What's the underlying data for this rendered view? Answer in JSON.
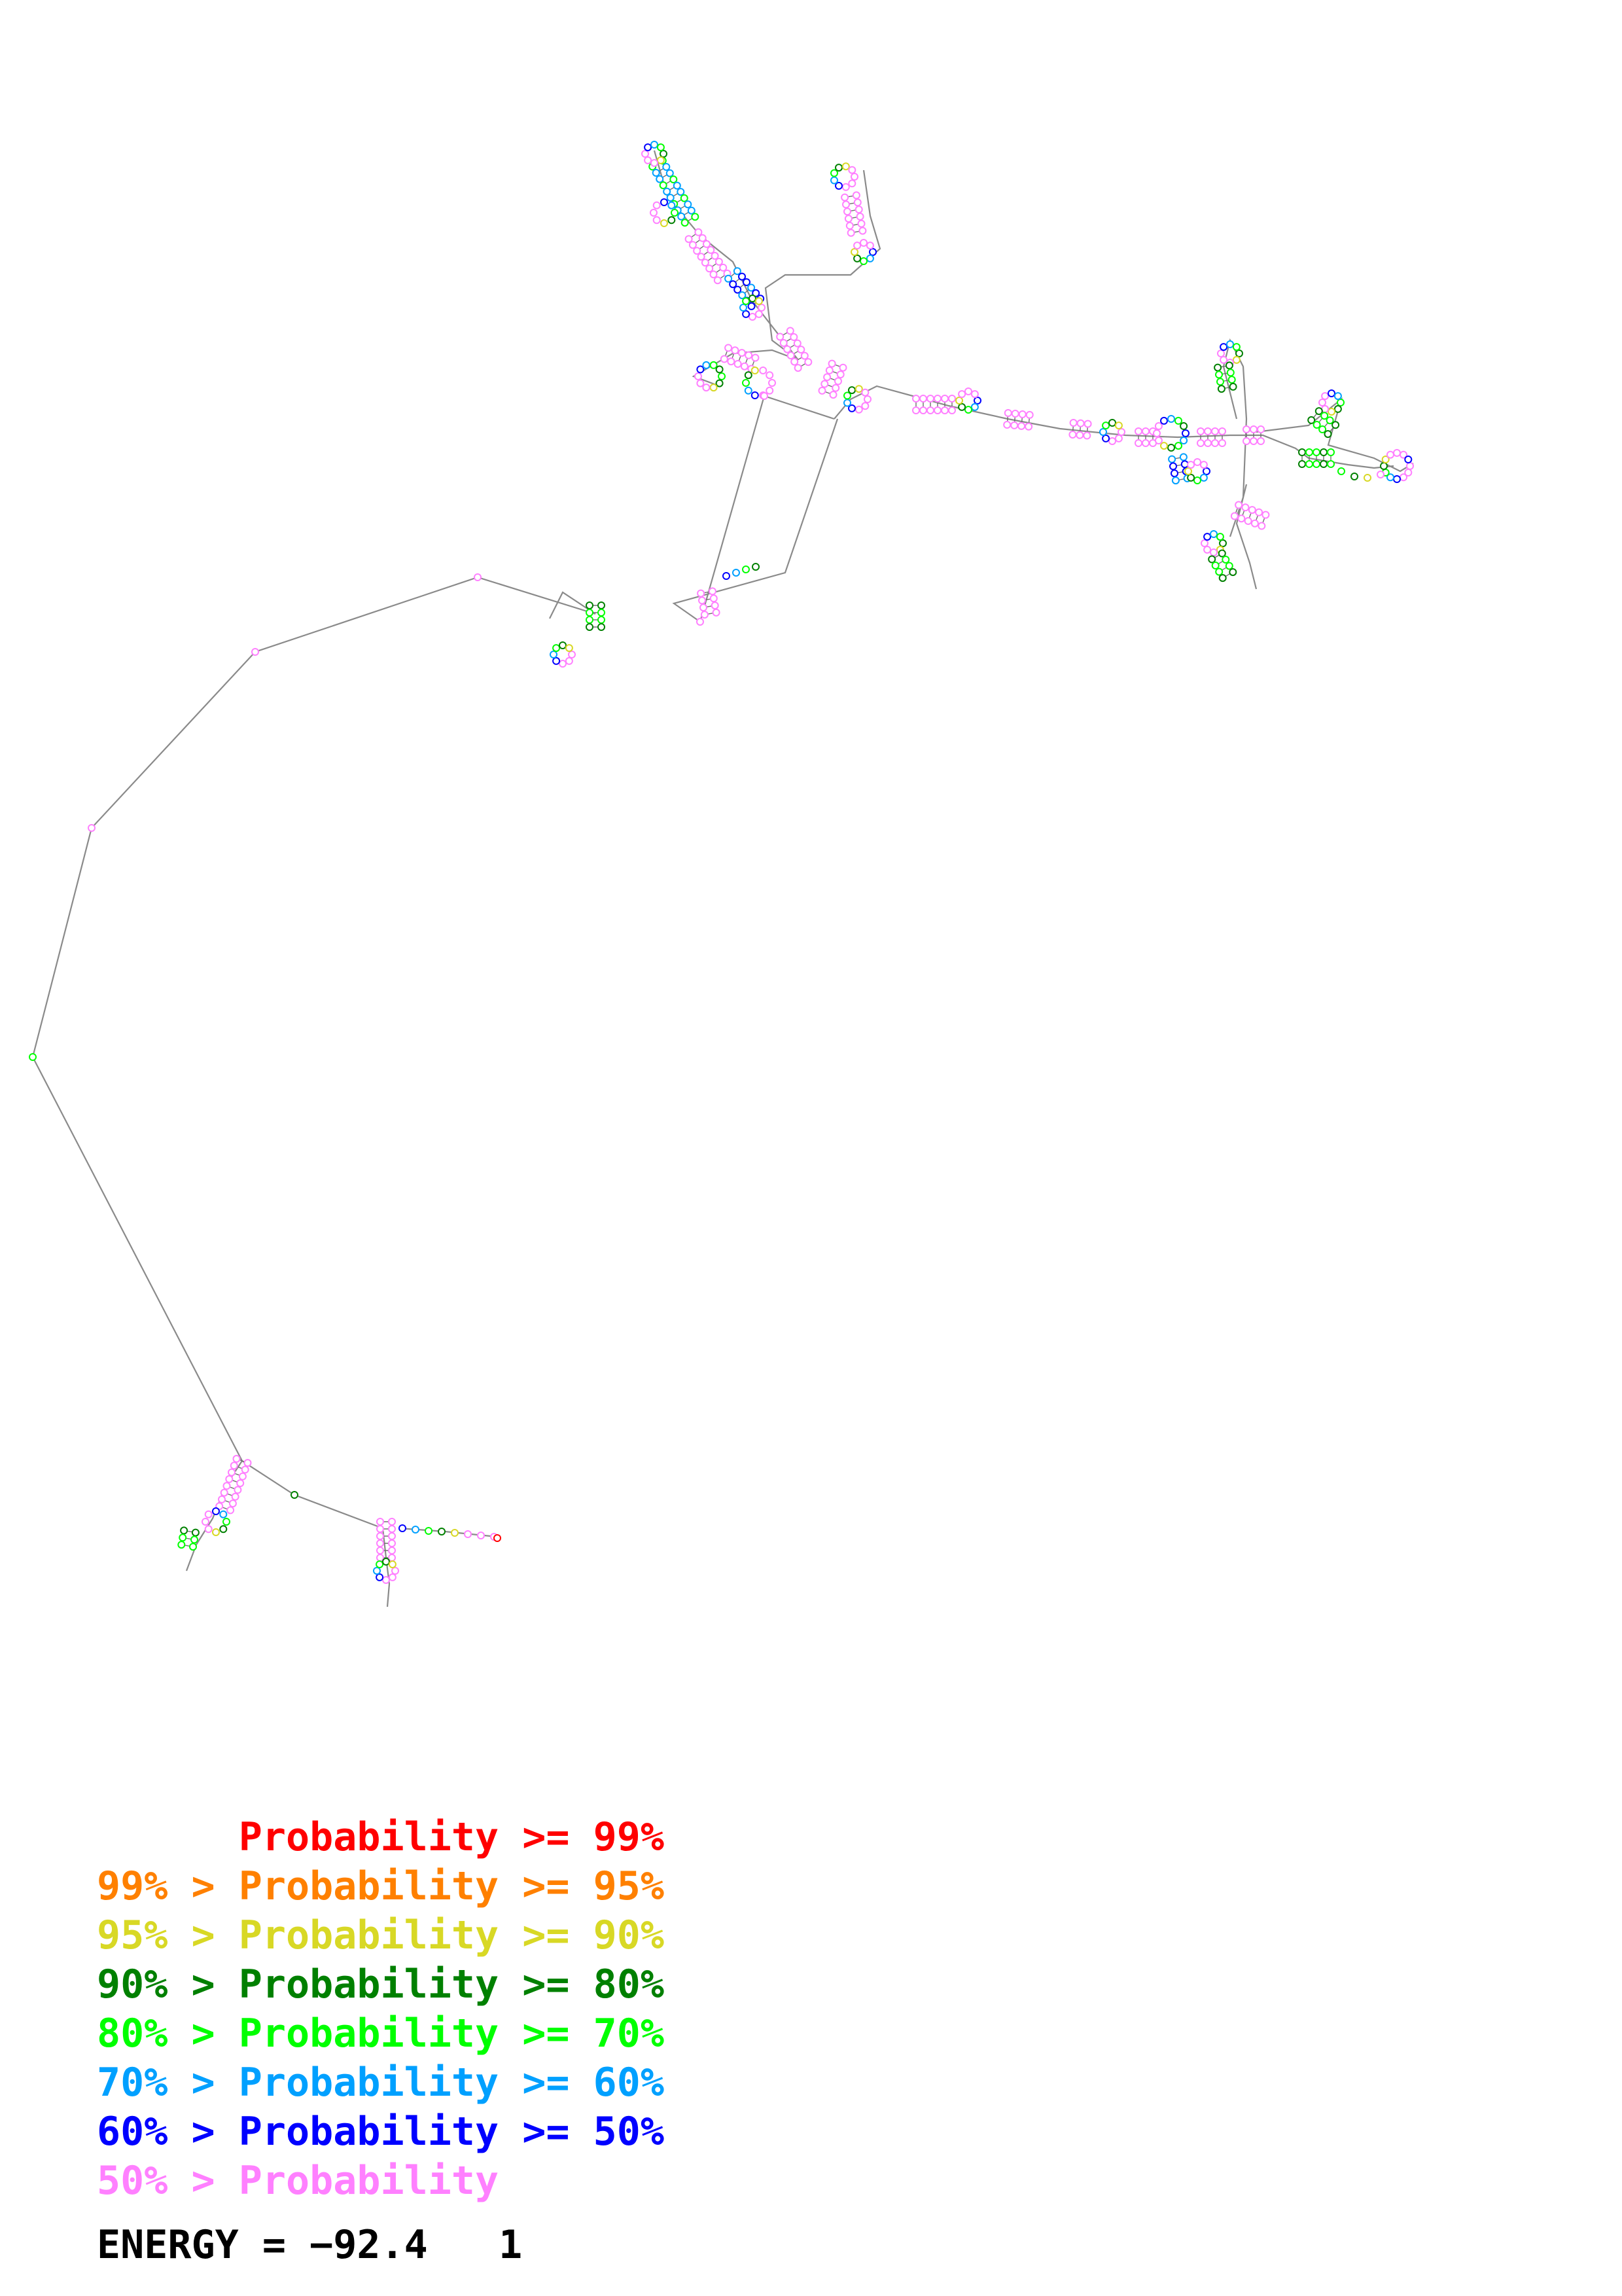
{
  "colors": {
    "p99": "#ff0000",
    "p95": "#ff8000",
    "p90": "#d8d825",
    "p80": "#008000",
    "p70": "#00ff00",
    "p60": "#00a0ff",
    "p50": "#0000ff",
    "plow": "#ff80ff",
    "backbone": "#8a8a8a",
    "text": "#000000"
  },
  "legend": [
    {
      "text": "      Probability >= 99%",
      "color_key": "p99"
    },
    {
      "text": "99% > Probability >= 95%",
      "color_key": "p95"
    },
    {
      "text": "95% > Probability >= 90%",
      "color_key": "p90"
    },
    {
      "text": "90% > Probability >= 80%",
      "color_key": "p80"
    },
    {
      "text": "80% > Probability >= 70%",
      "color_key": "p70"
    },
    {
      "text": "70% > Probability >= 60%",
      "color_key": "p60"
    },
    {
      "text": "60% > Probability >= 50%",
      "color_key": "p50"
    },
    {
      "text": "50% > Probability",
      "color_key": "plow"
    }
  ],
  "energy": "ENERGY = −92.4   1"
}
